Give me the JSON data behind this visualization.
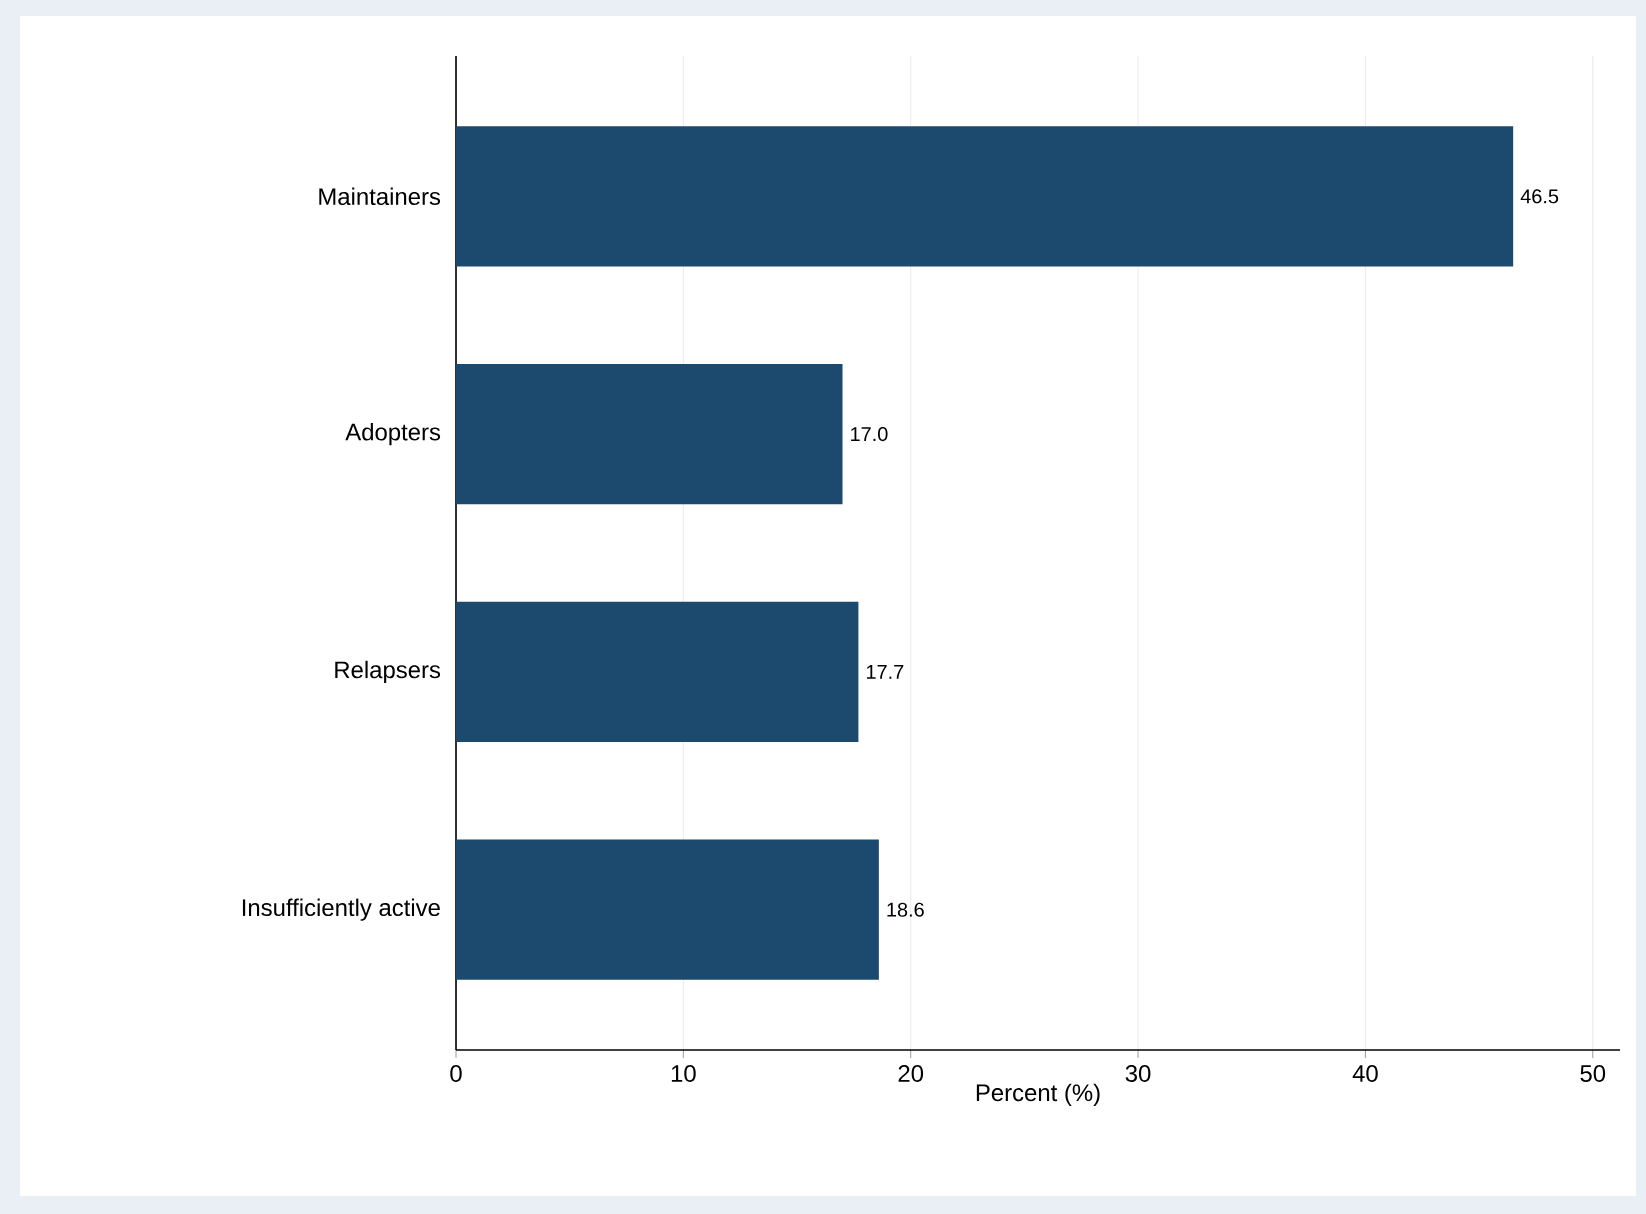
{
  "chart_data": {
    "type": "bar",
    "orientation": "horizontal",
    "categories": [
      "Maintainers",
      "Adopters",
      "Relapsers",
      "Insufficiently active"
    ],
    "values": [
      46.5,
      17.0,
      17.7,
      18.6
    ],
    "color": "#1c4a6e",
    "value_labels": [
      "46.5",
      "17.0",
      "17.7",
      "18.6"
    ],
    "xlabel": "Percent (%)",
    "xlim": [
      0,
      51.2
    ],
    "xticks": [
      0,
      10,
      20,
      30,
      40,
      50
    ],
    "grid": "x"
  }
}
